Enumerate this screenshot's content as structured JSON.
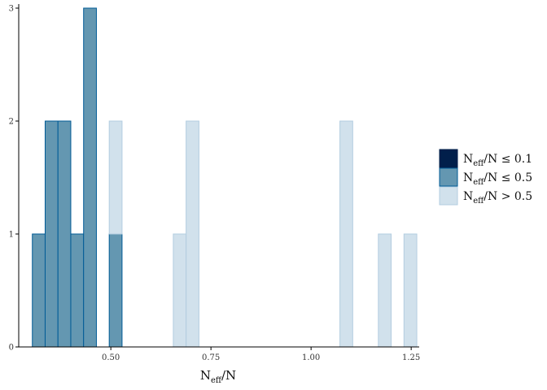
{
  "chart_data": {
    "type": "bar",
    "subtype": "stacked-histogram",
    "title": "",
    "xlabel": {
      "base": "N",
      "sub": "eff",
      "rest": "/N"
    },
    "ylabel": "",
    "xlim": [
      0.27,
      1.27
    ],
    "ylim": [
      0,
      3
    ],
    "bin_width": 0.032,
    "x_ticks": [
      0.5,
      0.75,
      1.0,
      1.25
    ],
    "x_tick_labels": [
      "0.50",
      "0.75",
      "1.00",
      "1.25"
    ],
    "y_ticks": [
      0,
      1,
      2,
      3
    ],
    "y_tick_labels": [
      "0",
      "1",
      "2",
      "3"
    ],
    "grid": false,
    "legend_position": "right",
    "series": [
      {
        "name": {
          "base": "N",
          "sub": "eff",
          "rest": "/N ≤ 0.1"
        },
        "color": "#011f4b",
        "bins": []
      },
      {
        "name": {
          "base": "N",
          "sub": "eff",
          "rest": "/N ≤ 0.5"
        },
        "color": "#6497b1",
        "stroke": "#005b96",
        "bins": [
          {
            "x": 0.32,
            "count": 1
          },
          {
            "x": 0.352,
            "count": 2
          },
          {
            "x": 0.384,
            "count": 2
          },
          {
            "x": 0.416,
            "count": 1
          },
          {
            "x": 0.448,
            "count": 3
          },
          {
            "x": 0.512,
            "count": 1
          }
        ]
      },
      {
        "name": {
          "base": "N",
          "sub": "eff",
          "rest": "/N > 0.5"
        },
        "color": "#d1e1ec",
        "stroke": "#b3cde0",
        "bins": [
          {
            "x": 0.512,
            "count": 1
          },
          {
            "x": 0.672,
            "count": 1
          },
          {
            "x": 0.704,
            "count": 2
          },
          {
            "x": 1.088,
            "count": 2
          },
          {
            "x": 1.184,
            "count": 1
          },
          {
            "x": 1.248,
            "count": 1
          }
        ]
      }
    ]
  }
}
